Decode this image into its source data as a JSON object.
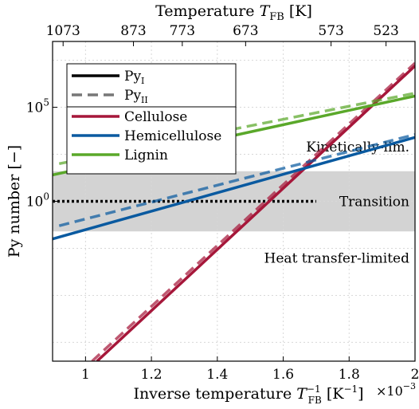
{
  "chart_data": {
    "type": "line",
    "title": "",
    "xlabel": "Inverse temperature",
    "xlabel_symbol": "T",
    "xlabel_sub": "FB",
    "xlabel_sup": "−1",
    "xlabel_unit_base": "K",
    "xlabel_unit_sup": "−1",
    "x_multiplier_base": "×10",
    "x_multiplier_exp": "−3",
    "ylabel": "Py number",
    "ylabel_unit": "[−]",
    "top_xlabel": "Temperature",
    "top_xlabel_symbol": "T",
    "top_xlabel_sub": "FB",
    "top_xlabel_unit": "[K]",
    "xlim": [
      0.9,
      2.0
    ],
    "ylim_log10": [
      -8.5,
      8.5
    ],
    "y_scale": "log",
    "grid": true,
    "xticks": [
      1,
      1.2,
      1.4,
      1.6,
      1.8,
      2
    ],
    "xtick_labels": [
      "1",
      "1.2",
      "1.4",
      "1.6",
      "1.8",
      "2"
    ],
    "top_ticks_K": [
      1073,
      873,
      773,
      673,
      573,
      523
    ],
    "top_tick_labels": [
      "1073",
      "873",
      "773",
      "673",
      "573",
      "523"
    ],
    "ytick_labels": [
      {
        "log10": 0,
        "base": "10",
        "exp": "0"
      },
      {
        "log10": 5,
        "base": "10",
        "exp": "5"
      }
    ],
    "y_minor_log10": [
      -7.5,
      -5,
      -2.5,
      2.5,
      7.5
    ],
    "transition_band_log10": [
      -1.6,
      1.6
    ],
    "transition_line_log10": 0,
    "transition_line_x": [
      0.9,
      1.7
    ],
    "region_labels": [
      {
        "text": "Kinetically-lim.",
        "y_log10": 2.9
      },
      {
        "text": "Transition",
        "y_log10": 0
      },
      {
        "text": "Heat transfer-limited",
        "y_log10": -3.0
      }
    ],
    "series": [
      {
        "name": "Cellulose",
        "model": "I",
        "color": "#a6173a",
        "x": [
          1.035,
          2.0
        ],
        "y_log10": [
          -8.5,
          7.2
        ]
      },
      {
        "name": "Cellulose",
        "model": "II",
        "color": "#a6173a",
        "x": [
          1.02,
          2.0
        ],
        "y_log10": [
          -8.5,
          7.35
        ]
      },
      {
        "name": "Hemicellulose",
        "model": "I",
        "color": "#0a5aa0",
        "x": [
          0.9,
          2.0
        ],
        "y_log10": [
          -2.0,
          3.4
        ]
      },
      {
        "name": "Hemicellulose",
        "model": "II",
        "color": "#0a5aa0",
        "x": [
          0.92,
          2.0
        ],
        "y_log10": [
          -1.3,
          3.55
        ]
      },
      {
        "name": "Lignin",
        "model": "I",
        "color": "#5aa82a",
        "x": [
          0.9,
          2.0
        ],
        "y_log10": [
          1.4,
          5.6
        ]
      },
      {
        "name": "Lignin",
        "model": "II",
        "color": "#5aa82a",
        "x": [
          0.92,
          2.0
        ],
        "y_log10": [
          2.0,
          5.75
        ]
      }
    ],
    "legend": {
      "placement": "top-left",
      "model_entries": [
        {
          "label_base": "Py",
          "label_sub": "I",
          "style": "solid",
          "color": "#000000"
        },
        {
          "label_base": "Py",
          "label_sub": "II",
          "style": "dashed",
          "color": "#777777"
        }
      ],
      "species_entries": [
        {
          "label": "Cellulose",
          "color": "#a6173a"
        },
        {
          "label": "Hemicellulose",
          "color": "#0a5aa0"
        },
        {
          "label": "Lignin",
          "color": "#5aa82a"
        }
      ]
    }
  }
}
